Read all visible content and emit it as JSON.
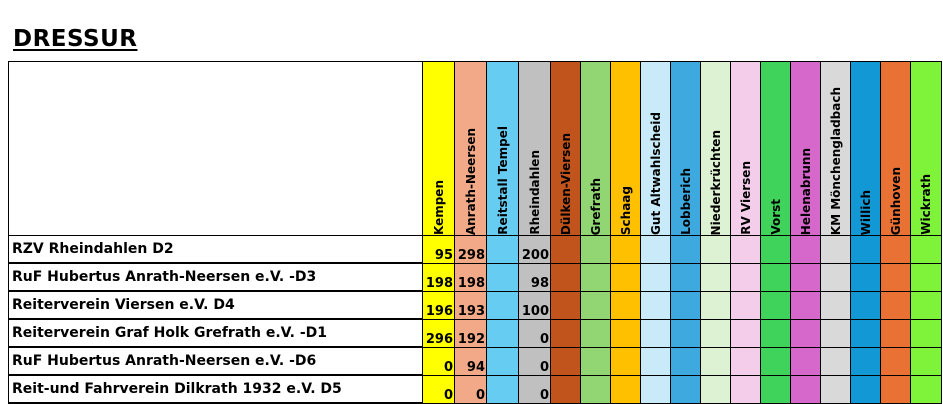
{
  "title": "DRESSUR",
  "columns": [
    {
      "label": "Kempen",
      "color": "#FFFF00"
    },
    {
      "label": "Anrath-Neersen",
      "color": "#F2A987"
    },
    {
      "label": "Reitstall Tempel",
      "color": "#66CCF1"
    },
    {
      "label": "Rheindahlen",
      "color": "#C0C0C0"
    },
    {
      "label": "Dülken-Viersen",
      "color": "#C0541C"
    },
    {
      "label": "Grefrath",
      "color": "#92D674"
    },
    {
      "label": "Schaag",
      "color": "#FFC000"
    },
    {
      "label": "Gut Altwahlscheid",
      "color": "#C9EBF9"
    },
    {
      "label": "Lobberich",
      "color": "#3DA9DF"
    },
    {
      "label": "Niederkrüchten",
      "color": "#DDF2D2"
    },
    {
      "label": "RV Viersen",
      "color": "#F3CDEA"
    },
    {
      "label": "Vorst",
      "color": "#3FD35C"
    },
    {
      "label": "Helenabrunn",
      "color": "#D768CB"
    },
    {
      "label": "KM Mönchengladbach",
      "color": "#D9D9D9"
    },
    {
      "label": "Willich",
      "color": "#1398D6"
    },
    {
      "label": "Günhoven",
      "color": "#E97134"
    },
    {
      "label": "Wickrath",
      "color": "#7FF33A"
    }
  ],
  "rows": [
    {
      "club": "RZV Rheindahlen D2",
      "values": [
        "95",
        "298",
        "",
        "200"
      ]
    },
    {
      "club": "RuF Hubertus Anrath-Neersen e.V. -D3",
      "values": [
        "198",
        "198",
        "",
        "98"
      ]
    },
    {
      "club": "Reiterverein Viersen e.V.  D4",
      "values": [
        "196",
        "193",
        "",
        "100"
      ]
    },
    {
      "club": "Reiterverein Graf Holk Grefrath e.V. -D1",
      "values": [
        "296",
        "192",
        "",
        "0"
      ]
    },
    {
      "club": "RuF Hubertus Anrath-Neersen e.V. -D6",
      "values": [
        "0",
        "94",
        "",
        "0"
      ]
    },
    {
      "club": "Reit-und Fahrverein Dilkrath 1932 e.V. D5",
      "values": [
        "0",
        "0",
        "",
        "0"
      ]
    }
  ]
}
